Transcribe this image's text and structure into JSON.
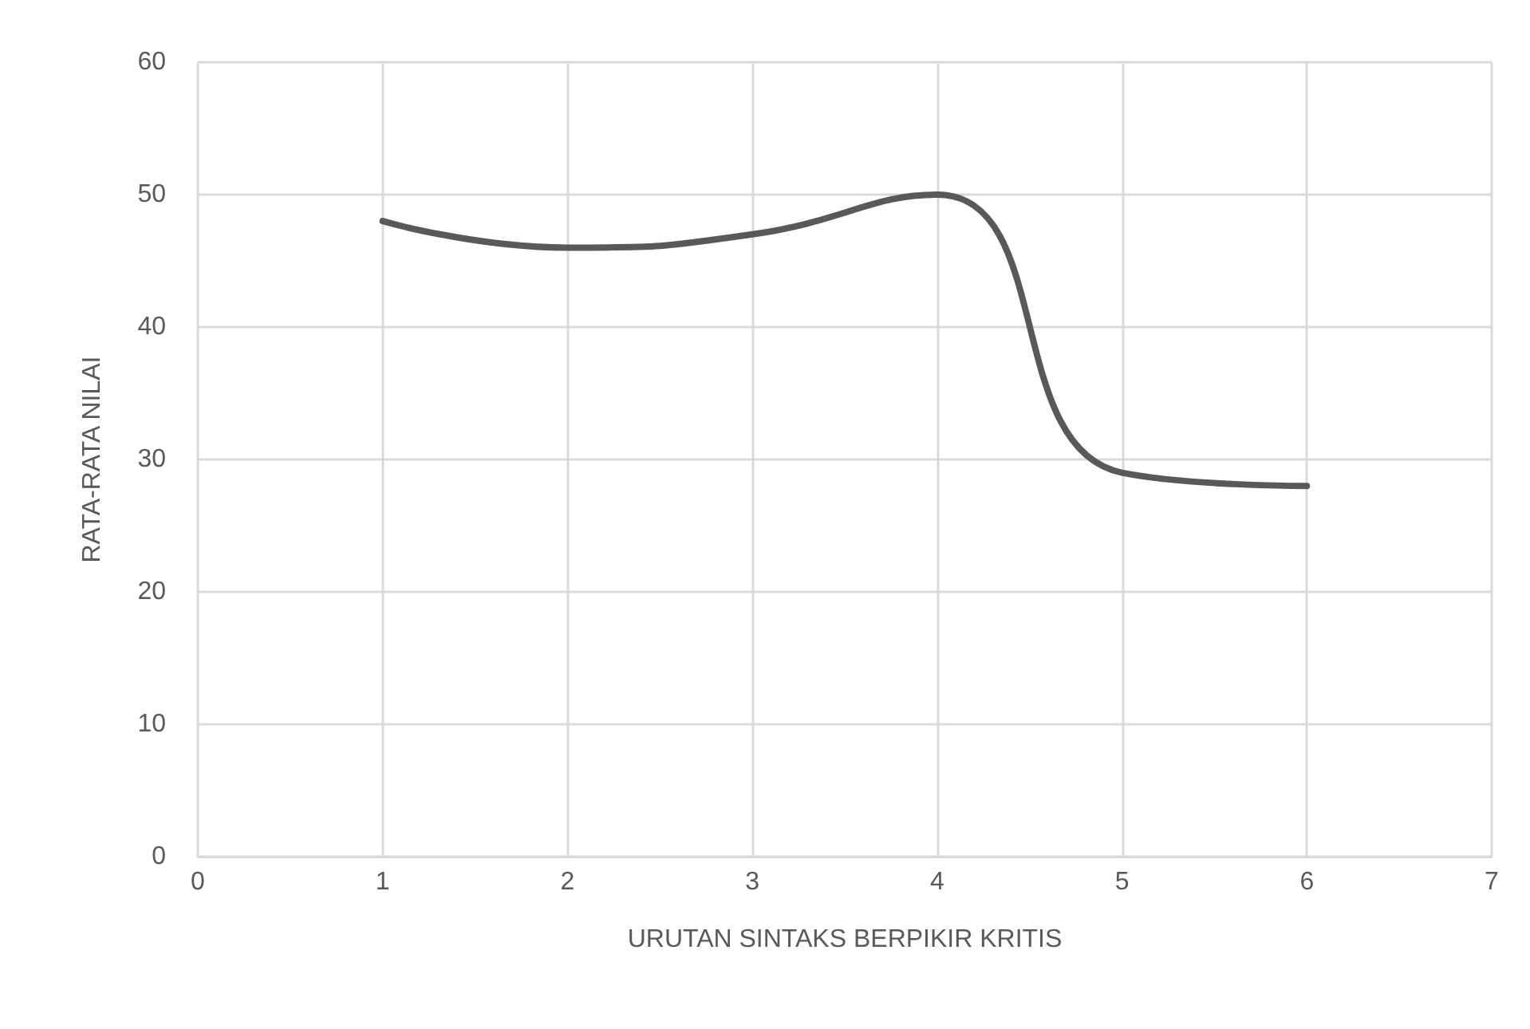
{
  "chart_data": {
    "type": "line",
    "xlabel": "URUTAN SINTAKS BERPIKIR KRITIS",
    "ylabel": "RATA-RATA NILAI",
    "x": [
      1,
      2,
      3,
      4,
      5,
      6
    ],
    "series": [
      {
        "color": "#595959",
        "values": [
          48,
          46,
          47,
          50,
          29,
          28
        ]
      }
    ],
    "xlim": [
      0,
      7
    ],
    "xticks": [
      0,
      1,
      2,
      3,
      4,
      5,
      6,
      7
    ],
    "ylim": [
      0,
      60
    ],
    "yticks": [
      0,
      10,
      20,
      30,
      40,
      50,
      60
    ],
    "grid": true,
    "marker": "none",
    "line_style": "solid"
  }
}
